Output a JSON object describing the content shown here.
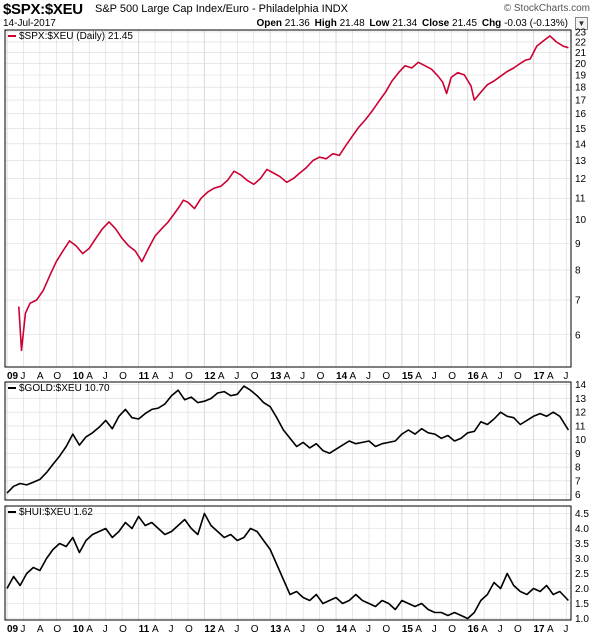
{
  "header": {
    "symbol": "$SPX:$XEU",
    "description": "S&P 500 Large Cap Index/Euro - Philadelphia INDX",
    "date": "14-Jul-2017",
    "open_label": "Open",
    "open": "21.36",
    "high_label": "High",
    "high": "21.48",
    "low_label": "Low",
    "low": "21.34",
    "close_label": "Close",
    "close": "21.45",
    "chg_label": "Chg",
    "chg": "-0.03 (-0.13%)",
    "credit": "© StockCharts.com",
    "dropdown_icon": "chevron-down-icon"
  },
  "colors": {
    "spx": "#cc0033",
    "gold": "#000000",
    "hui": "#000000",
    "grid": "#d9d9d9"
  },
  "x_labels": [
    "09",
    "J",
    "A",
    "O",
    "10",
    "A",
    "J",
    "O",
    "11",
    "A",
    "J",
    "O",
    "12",
    "A",
    "J",
    "O",
    "13",
    "A",
    "J",
    "O",
    "14",
    "A",
    "J",
    "O",
    "15",
    "A",
    "J",
    "O",
    "16",
    "A",
    "J",
    "O",
    "17",
    "A",
    "J"
  ],
  "chart_data": [
    {
      "type": "line",
      "name": "$SPX:$XEU",
      "legend": "$SPX:$XEU (Daily) 21.45",
      "color": "#cc0033",
      "yticks": [
        6,
        7,
        8,
        9,
        10,
        11,
        12,
        13,
        14,
        15,
        16,
        17,
        18,
        19,
        20,
        21,
        22,
        23
      ],
      "scale": "log",
      "ylim": [
        5.2,
        23.2
      ],
      "x": [
        2009.18,
        2009.22,
        2009.28,
        2009.35,
        2009.45,
        2009.55,
        2009.65,
        2009.75,
        2009.85,
        2009.95,
        2010.05,
        2010.15,
        2010.25,
        2010.35,
        2010.45,
        2010.55,
        2010.65,
        2010.75,
        2010.85,
        2010.95,
        2011.05,
        2011.15,
        2011.25,
        2011.35,
        2011.45,
        2011.55,
        2011.62,
        2011.68,
        2011.75,
        2011.85,
        2011.95,
        2012.05,
        2012.15,
        2012.25,
        2012.35,
        2012.45,
        2012.55,
        2012.65,
        2012.75,
        2012.85,
        2012.95,
        2013.05,
        2013.15,
        2013.25,
        2013.35,
        2013.45,
        2013.55,
        2013.65,
        2013.75,
        2013.85,
        2013.95,
        2014.05,
        2014.15,
        2014.25,
        2014.35,
        2014.45,
        2014.55,
        2014.65,
        2014.75,
        2014.85,
        2014.95,
        2015.05,
        2015.15,
        2015.25,
        2015.35,
        2015.45,
        2015.55,
        2015.62,
        2015.68,
        2015.75,
        2015.85,
        2015.95,
        2016.05,
        2016.1,
        2016.2,
        2016.3,
        2016.4,
        2016.5,
        2016.6,
        2016.7,
        2016.8,
        2016.88,
        2016.95,
        2017.05,
        2017.15,
        2017.25,
        2017.35,
        2017.45,
        2017.53
      ],
      "y": [
        6.8,
        5.6,
        6.6,
        6.9,
        7.0,
        7.3,
        7.8,
        8.3,
        8.7,
        9.1,
        8.9,
        8.6,
        8.8,
        9.2,
        9.6,
        9.9,
        9.6,
        9.2,
        8.9,
        8.7,
        8.3,
        8.8,
        9.3,
        9.6,
        9.9,
        10.3,
        10.6,
        10.9,
        10.8,
        10.5,
        11.0,
        11.3,
        11.5,
        11.6,
        11.9,
        12.4,
        12.2,
        11.9,
        11.7,
        12.0,
        12.5,
        12.3,
        12.1,
        11.8,
        12.0,
        12.3,
        12.6,
        13.0,
        13.2,
        13.1,
        13.4,
        13.3,
        13.9,
        14.5,
        15.1,
        15.6,
        16.2,
        16.9,
        17.6,
        18.5,
        19.2,
        19.8,
        19.6,
        20.1,
        19.8,
        19.5,
        18.9,
        18.4,
        17.5,
        18.8,
        19.2,
        19.0,
        18.1,
        17.0,
        17.6,
        18.2,
        18.5,
        18.9,
        19.3,
        19.6,
        20.0,
        20.3,
        20.4,
        21.6,
        22.1,
        22.6,
        22.0,
        21.6,
        21.45
      ]
    },
    {
      "type": "line",
      "name": "$GOLD:$XEU",
      "legend": "$GOLD:$XEU 10.70",
      "color": "#000000",
      "yticks": [
        6,
        7,
        8,
        9,
        10,
        11,
        12,
        13,
        14
      ],
      "ylim": [
        5.6,
        14.2
      ],
      "x": [
        2009.0,
        2009.1,
        2009.2,
        2009.3,
        2009.4,
        2009.5,
        2009.6,
        2009.7,
        2009.8,
        2009.9,
        2010.0,
        2010.1,
        2010.2,
        2010.3,
        2010.4,
        2010.5,
        2010.6,
        2010.7,
        2010.8,
        2010.9,
        2011.0,
        2011.1,
        2011.2,
        2011.3,
        2011.4,
        2011.5,
        2011.6,
        2011.7,
        2011.8,
        2011.9,
        2012.0,
        2012.1,
        2012.2,
        2012.3,
        2012.4,
        2012.5,
        2012.6,
        2012.7,
        2012.8,
        2012.9,
        2013.0,
        2013.1,
        2013.2,
        2013.3,
        2013.4,
        2013.5,
        2013.6,
        2013.7,
        2013.8,
        2013.9,
        2014.0,
        2014.1,
        2014.2,
        2014.3,
        2014.4,
        2014.5,
        2014.6,
        2014.7,
        2014.8,
        2014.9,
        2015.0,
        2015.1,
        2015.2,
        2015.3,
        2015.4,
        2015.5,
        2015.6,
        2015.7,
        2015.8,
        2015.9,
        2016.0,
        2016.1,
        2016.2,
        2016.3,
        2016.4,
        2016.5,
        2016.6,
        2016.7,
        2016.8,
        2016.9,
        2017.0,
        2017.1,
        2017.2,
        2017.3,
        2017.4,
        2017.53
      ],
      "y": [
        6.1,
        6.6,
        6.8,
        6.7,
        6.9,
        7.1,
        7.6,
        8.2,
        8.8,
        9.5,
        10.4,
        9.6,
        10.2,
        10.5,
        10.9,
        11.4,
        10.8,
        11.7,
        12.2,
        11.6,
        11.5,
        11.9,
        12.2,
        12.3,
        12.6,
        13.2,
        13.6,
        12.9,
        13.1,
        12.7,
        12.8,
        13.0,
        13.4,
        13.5,
        13.2,
        13.3,
        13.9,
        13.6,
        13.2,
        12.7,
        12.4,
        11.6,
        10.7,
        10.1,
        9.5,
        9.8,
        9.4,
        9.7,
        9.2,
        9.0,
        9.3,
        9.6,
        9.9,
        9.7,
        9.8,
        9.9,
        9.5,
        9.7,
        9.8,
        9.9,
        10.4,
        10.7,
        10.4,
        10.8,
        10.5,
        10.4,
        10.1,
        10.3,
        9.9,
        10.1,
        10.5,
        10.6,
        11.3,
        11.1,
        11.5,
        12.0,
        11.7,
        11.6,
        11.1,
        11.4,
        11.7,
        11.9,
        11.7,
        12.0,
        11.7,
        10.7
      ]
    },
    {
      "type": "line",
      "name": "$HUI:$XEU",
      "legend": "$HUI:$XEU 1.62",
      "color": "#000000",
      "yticks": [
        1.0,
        1.5,
        2.0,
        2.5,
        3.0,
        3.5,
        4.0,
        4.5
      ],
      "ylim": [
        0.95,
        4.75
      ],
      "x": [
        2009.0,
        2009.1,
        2009.2,
        2009.3,
        2009.4,
        2009.5,
        2009.6,
        2009.7,
        2009.8,
        2009.9,
        2010.0,
        2010.1,
        2010.2,
        2010.3,
        2010.4,
        2010.5,
        2010.6,
        2010.7,
        2010.8,
        2010.9,
        2011.0,
        2011.1,
        2011.2,
        2011.3,
        2011.4,
        2011.5,
        2011.6,
        2011.7,
        2011.8,
        2011.9,
        2012.0,
        2012.1,
        2012.2,
        2012.3,
        2012.4,
        2012.5,
        2012.6,
        2012.7,
        2012.8,
        2012.9,
        2013.0,
        2013.1,
        2013.2,
        2013.3,
        2013.4,
        2013.5,
        2013.6,
        2013.7,
        2013.8,
        2013.9,
        2014.0,
        2014.1,
        2014.2,
        2014.3,
        2014.4,
        2014.5,
        2014.6,
        2014.7,
        2014.8,
        2014.9,
        2015.0,
        2015.1,
        2015.2,
        2015.3,
        2015.4,
        2015.5,
        2015.6,
        2015.7,
        2015.8,
        2015.9,
        2016.0,
        2016.1,
        2016.2,
        2016.3,
        2016.4,
        2016.5,
        2016.6,
        2016.7,
        2016.8,
        2016.9,
        2017.0,
        2017.1,
        2017.2,
        2017.3,
        2017.4,
        2017.53
      ],
      "y": [
        2.0,
        2.4,
        2.1,
        2.5,
        2.7,
        2.6,
        3.0,
        3.3,
        3.5,
        3.4,
        3.7,
        3.2,
        3.6,
        3.8,
        3.9,
        4.0,
        3.7,
        3.9,
        4.2,
        4.0,
        4.4,
        4.1,
        4.2,
        4.0,
        3.8,
        3.9,
        4.1,
        4.3,
        4.0,
        3.8,
        4.5,
        4.1,
        3.9,
        3.7,
        3.8,
        3.6,
        3.7,
        4.0,
        3.9,
        3.6,
        3.3,
        2.8,
        2.3,
        1.8,
        1.9,
        1.7,
        1.6,
        1.8,
        1.5,
        1.6,
        1.7,
        1.5,
        1.6,
        1.8,
        1.6,
        1.5,
        1.4,
        1.6,
        1.5,
        1.3,
        1.6,
        1.5,
        1.4,
        1.5,
        1.3,
        1.2,
        1.2,
        1.1,
        1.2,
        1.1,
        1.0,
        1.2,
        1.6,
        1.8,
        2.2,
        2.0,
        2.5,
        2.1,
        1.9,
        1.8,
        2.0,
        1.9,
        2.1,
        1.8,
        1.9,
        1.6
      ]
    }
  ]
}
